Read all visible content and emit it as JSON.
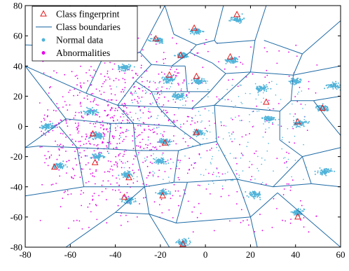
{
  "chart_data": {
    "type": "scatter",
    "title": "",
    "xlabel": "",
    "ylabel": "",
    "xlim": [
      -80,
      60
    ],
    "ylim": [
      -80,
      80
    ],
    "x_ticks": [
      -80,
      -60,
      -40,
      -20,
      0,
      20,
      40,
      60
    ],
    "y_ticks": [
      -80,
      -60,
      -40,
      -20,
      0,
      20,
      40,
      60,
      80
    ],
    "x_tick_labels": [
      "-80",
      "-60",
      "-40",
      "-20",
      "0",
      "20",
      "40",
      "60"
    ],
    "y_tick_labels": [
      "-80",
      "-60",
      "-40",
      "-20",
      "0",
      "20",
      "40",
      "60",
      "80"
    ],
    "grid": false,
    "legend_position": "top-left",
    "colors": {
      "fingerprint": "#e31a1c",
      "boundary": "#1f6aa5",
      "normal": "#4fb3d9",
      "abnormal": "#e600e6"
    },
    "legend": [
      {
        "key": "fingerprint",
        "label": "Class fingerprint"
      },
      {
        "key": "boundary",
        "label": "Class boundaries"
      },
      {
        "key": "normal",
        "label": "Normal data"
      },
      {
        "key": "abnormal",
        "label": "Abnormalities"
      }
    ],
    "fingerprints": [
      [
        14,
        74
      ],
      [
        -5,
        65
      ],
      [
        -22,
        58
      ],
      [
        -11,
        47
      ],
      [
        11,
        46
      ],
      [
        -16,
        34
      ],
      [
        -4,
        33
      ],
      [
        -50,
        -5
      ],
      [
        -18,
        -11
      ],
      [
        -4,
        -4
      ],
      [
        41,
        3
      ],
      [
        52,
        12
      ],
      [
        -67,
        -27
      ],
      [
        -49,
        -24
      ],
      [
        -34,
        -34
      ],
      [
        -36,
        -47
      ],
      [
        -19,
        -46
      ],
      [
        -10,
        -78
      ],
      [
        41,
        -60
      ],
      [
        27,
        16
      ]
    ],
    "normal_clusters": [
      [
        14,
        71
      ],
      [
        -4,
        63
      ],
      [
        -21,
        57
      ],
      [
        -10,
        47
      ],
      [
        12,
        44
      ],
      [
        -36,
        39
      ],
      [
        -16,
        31
      ],
      [
        -3,
        30
      ],
      [
        40,
        30
      ],
      [
        57,
        27
      ],
      [
        25,
        25
      ],
      [
        -12,
        20
      ],
      [
        -51,
        10
      ],
      [
        52,
        12
      ],
      [
        28,
        5
      ],
      [
        42,
        2
      ],
      [
        -70,
        0
      ],
      [
        -3,
        -4
      ],
      [
        -48,
        -6
      ],
      [
        -18,
        -10
      ],
      [
        -65,
        -26
      ],
      [
        -48,
        -20
      ],
      [
        -20,
        -23
      ],
      [
        53,
        -30
      ],
      [
        -35,
        -32
      ],
      [
        -34,
        -49
      ],
      [
        -19,
        -44
      ],
      [
        41,
        -57
      ],
      [
        -10,
        -77
      ],
      [
        22,
        -45
      ]
    ],
    "boundaries": [
      [
        [
          -80,
          54
        ],
        [
          -60,
          53
        ]
      ],
      [
        [
          -60,
          53
        ],
        [
          -53,
          80
        ]
      ],
      [
        [
          -60,
          53
        ],
        [
          -46,
          44
        ]
      ],
      [
        [
          -46,
          44
        ],
        [
          -29,
          49
        ]
      ],
      [
        [
          -29,
          49
        ],
        [
          -18,
          80
        ]
      ],
      [
        [
          -29,
          49
        ],
        [
          -24,
          41
        ]
      ],
      [
        [
          -46,
          44
        ],
        [
          -53,
          22
        ]
      ],
      [
        [
          -53,
          22
        ],
        [
          -80,
          40
        ]
      ],
      [
        [
          -53,
          22
        ],
        [
          -39,
          14
        ]
      ],
      [
        [
          -39,
          14
        ],
        [
          -31,
          30
        ]
      ],
      [
        [
          -31,
          30
        ],
        [
          -24,
          41
        ]
      ],
      [
        [
          -24,
          41
        ],
        [
          -15,
          40
        ]
      ],
      [
        [
          -15,
          40
        ],
        [
          -7,
          49
        ]
      ],
      [
        [
          -7,
          49
        ],
        [
          -4,
          54
        ]
      ],
      [
        [
          -4,
          54
        ],
        [
          -14,
          61
        ]
      ],
      [
        [
          -14,
          61
        ],
        [
          -18,
          80
        ]
      ],
      [
        [
          -4,
          54
        ],
        [
          4,
          57
        ]
      ],
      [
        [
          4,
          57
        ],
        [
          8,
          80
        ]
      ],
      [
        [
          4,
          57
        ],
        [
          5,
          55
        ]
      ],
      [
        [
          5,
          55
        ],
        [
          22,
          57
        ]
      ],
      [
        [
          22,
          57
        ],
        [
          27,
          80
        ]
      ],
      [
        [
          22,
          57
        ],
        [
          20,
          36
        ]
      ],
      [
        [
          20,
          36
        ],
        [
          9,
          35
        ]
      ],
      [
        [
          9,
          35
        ],
        [
          3,
          42
        ]
      ],
      [
        [
          3,
          42
        ],
        [
          -7,
          49
        ]
      ],
      [
        [
          9,
          35
        ],
        [
          2,
          23
        ]
      ],
      [
        [
          2,
          23
        ],
        [
          -8,
          23
        ]
      ],
      [
        [
          -8,
          23
        ],
        [
          -9,
          40
        ]
      ],
      [
        [
          -9,
          40
        ],
        [
          -15,
          40
        ]
      ],
      [
        [
          -8,
          23
        ],
        [
          -24,
          23
        ]
      ],
      [
        [
          -24,
          23
        ],
        [
          -31,
          30
        ]
      ],
      [
        [
          -24,
          23
        ],
        [
          -21,
          13
        ]
      ],
      [
        [
          -21,
          13
        ],
        [
          -39,
          14
        ]
      ],
      [
        [
          -21,
          13
        ],
        [
          -6,
          12
        ]
      ],
      [
        [
          -6,
          12
        ],
        [
          2,
          23
        ]
      ],
      [
        [
          -6,
          12
        ],
        [
          4,
          14
        ]
      ],
      [
        [
          4,
          14
        ],
        [
          20,
          36
        ]
      ],
      [
        [
          20,
          36
        ],
        [
          39,
          34
        ]
      ],
      [
        [
          39,
          34
        ],
        [
          43,
          48
        ]
      ],
      [
        [
          43,
          48
        ],
        [
          60,
          70
        ]
      ],
      [
        [
          43,
          48
        ],
        [
          26,
          57
        ]
      ],
      [
        [
          39,
          34
        ],
        [
          60,
          40
        ]
      ],
      [
        [
          39,
          34
        ],
        [
          38,
          17
        ]
      ],
      [
        [
          38,
          17
        ],
        [
          48,
          17
        ]
      ],
      [
        [
          48,
          17
        ],
        [
          60,
          20
        ]
      ],
      [
        [
          48,
          17
        ],
        [
          54,
          5
        ]
      ],
      [
        [
          54,
          5
        ],
        [
          60,
          -6
        ]
      ],
      [
        [
          38,
          17
        ],
        [
          33,
          10
        ]
      ],
      [
        [
          33,
          10
        ],
        [
          4,
          14
        ]
      ],
      [
        [
          33,
          10
        ],
        [
          33,
          -9
        ]
      ],
      [
        [
          33,
          -9
        ],
        [
          43,
          -20
        ]
      ],
      [
        [
          43,
          -20
        ],
        [
          60,
          -14
        ]
      ],
      [
        [
          43,
          -20
        ],
        [
          47,
          -38
        ]
      ],
      [
        [
          47,
          -38
        ],
        [
          60,
          -40
        ]
      ],
      [
        [
          47,
          -38
        ],
        [
          30,
          -40
        ]
      ],
      [
        [
          30,
          -40
        ],
        [
          43,
          -20
        ]
      ],
      [
        [
          30,
          -40
        ],
        [
          14,
          -35
        ]
      ],
      [
        [
          14,
          -35
        ],
        [
          5,
          -10
        ]
      ],
      [
        [
          5,
          -10
        ],
        [
          4,
          14
        ]
      ],
      [
        [
          5,
          -10
        ],
        [
          -2,
          -12
        ]
      ],
      [
        [
          -2,
          -12
        ],
        [
          -13,
          0
        ]
      ],
      [
        [
          -13,
          0
        ],
        [
          -21,
          13
        ]
      ],
      [
        [
          -13,
          0
        ],
        [
          -32,
          2
        ]
      ],
      [
        [
          -32,
          2
        ],
        [
          -39,
          14
        ]
      ],
      [
        [
          -32,
          2
        ],
        [
          -31,
          -16
        ]
      ],
      [
        [
          -31,
          -16
        ],
        [
          -12,
          -16
        ]
      ],
      [
        [
          -12,
          -16
        ],
        [
          -2,
          -12
        ]
      ],
      [
        [
          -12,
          -16
        ],
        [
          -14,
          -37
        ]
      ],
      [
        [
          -14,
          -37
        ],
        [
          -8,
          -37
        ]
      ],
      [
        [
          -8,
          -37
        ],
        [
          14,
          -35
        ]
      ],
      [
        [
          -14,
          -37
        ],
        [
          -27,
          -40
        ]
      ],
      [
        [
          -27,
          -40
        ],
        [
          -31,
          -16
        ]
      ],
      [
        [
          -31,
          -16
        ],
        [
          -43,
          -15
        ]
      ],
      [
        [
          -43,
          -15
        ],
        [
          -42,
          2
        ]
      ],
      [
        [
          -42,
          2
        ],
        [
          -32,
          2
        ]
      ],
      [
        [
          -42,
          2
        ],
        [
          -62,
          5
        ]
      ],
      [
        [
          -62,
          5
        ],
        [
          -80,
          40
        ]
      ],
      [
        [
          -62,
          5
        ],
        [
          -80,
          -14
        ]
      ],
      [
        [
          -43,
          -15
        ],
        [
          -57,
          -14
        ]
      ],
      [
        [
          -57,
          -14
        ],
        [
          -65,
          0
        ]
      ],
      [
        [
          -57,
          -14
        ],
        [
          -54,
          -40
        ]
      ],
      [
        [
          -54,
          -40
        ],
        [
          -80,
          -46
        ]
      ],
      [
        [
          -54,
          -40
        ],
        [
          -27,
          -40
        ]
      ],
      [
        [
          -57,
          -14
        ],
        [
          -74,
          -13
        ]
      ],
      [
        [
          -74,
          -13
        ],
        [
          -80,
          -14
        ]
      ],
      [
        [
          -27,
          -40
        ],
        [
          -40,
          -57
        ]
      ],
      [
        [
          -40,
          -57
        ],
        [
          -62,
          -80
        ]
      ],
      [
        [
          -40,
          -57
        ],
        [
          -25,
          -58
        ]
      ],
      [
        [
          -25,
          -58
        ],
        [
          -16,
          -80
        ]
      ],
      [
        [
          -25,
          -58
        ],
        [
          -27,
          -40
        ]
      ],
      [
        [
          -25,
          -58
        ],
        [
          -13,
          -64
        ]
      ],
      [
        [
          -13,
          -64
        ],
        [
          -8,
          -37
        ]
      ],
      [
        [
          -13,
          -64
        ],
        [
          20,
          -60
        ]
      ],
      [
        [
          20,
          -60
        ],
        [
          14,
          -35
        ]
      ],
      [
        [
          20,
          -60
        ],
        [
          23,
          -80
        ]
      ],
      [
        [
          20,
          -60
        ],
        [
          32,
          -44
        ]
      ],
      [
        [
          32,
          -44
        ],
        [
          60,
          -80
        ]
      ]
    ]
  }
}
